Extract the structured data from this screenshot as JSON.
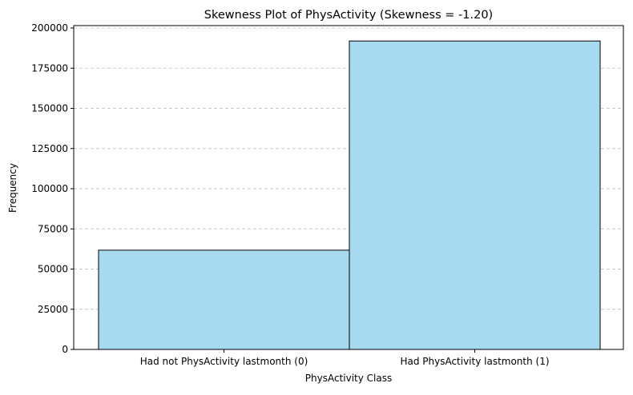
{
  "chart_data": {
    "type": "bar",
    "title": "Skewness Plot of PhysActivity (Skewness = -1.20)",
    "xlabel": "PhysActivity Class",
    "ylabel": "Frequency",
    "categories": [
      "Had not PhysActivity lastmonth (0)",
      "Had PhysActivity lastmonth (1)"
    ],
    "values": [
      61760,
      191920
    ],
    "ylim": [
      0,
      201500
    ],
    "yticks": [
      0,
      25000,
      50000,
      75000,
      100000,
      125000,
      150000,
      175000,
      200000
    ],
    "grid": "y-dashed",
    "bar_color": "#a7daf0",
    "edge_color": "#000000",
    "grid_color": "#c8c8c8"
  }
}
